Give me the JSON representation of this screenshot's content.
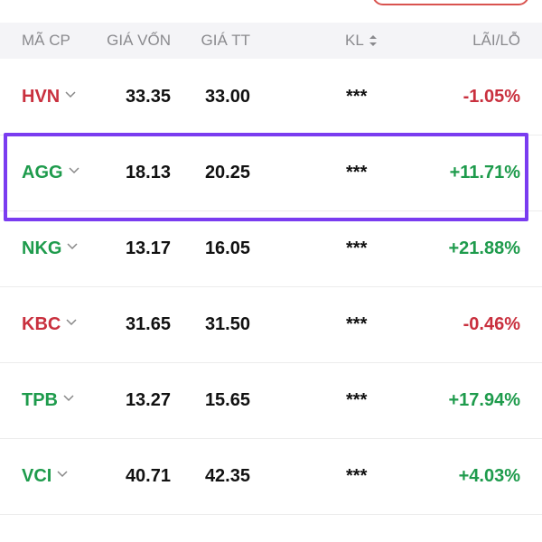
{
  "header": {
    "columns": [
      "MÃ CP",
      "GIÁ VỐN",
      "GIÁ TT",
      "KL",
      "LÃI/LỖ"
    ]
  },
  "table": {
    "rows": [
      [
        "HVN",
        "33.35",
        "33.00",
        "***",
        "-1.05%"
      ],
      [
        "AGG",
        "18.13",
        "20.25",
        "***",
        "+11.71%"
      ],
      [
        "NKG",
        "13.17",
        "16.05",
        "***",
        "+21.88%"
      ],
      [
        "KBC",
        "31.65",
        "31.50",
        "***",
        "-0.46%"
      ],
      [
        "TPB",
        "13.27",
        "15.65",
        "***",
        "+17.94%"
      ],
      [
        "VCI",
        "40.71",
        "42.35",
        "***",
        "+4.03%"
      ]
    ]
  }
}
